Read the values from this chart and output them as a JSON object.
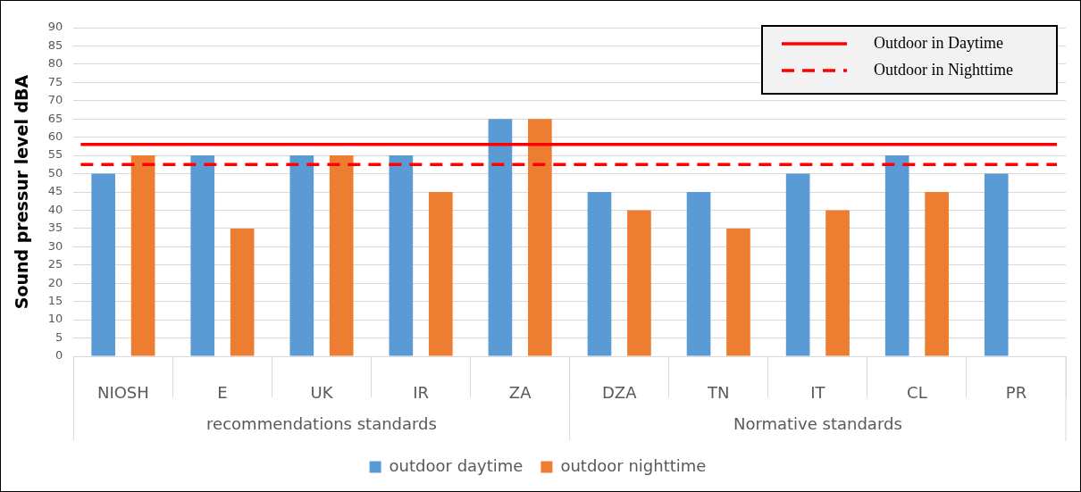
{
  "chart_data": {
    "type": "bar",
    "ylabel": "Sound pressur level dBA",
    "categories": [
      "NIOSH",
      "E",
      "UK",
      "IR",
      "ZA",
      "DZA",
      "TN",
      "IT",
      "CL",
      "PR"
    ],
    "series": [
      {
        "name": "outdoor daytime",
        "color": "#5b9bd5",
        "values": [
          50,
          55,
          55,
          55,
          65,
          45,
          45,
          50,
          55,
          50
        ]
      },
      {
        "name": "outdoor nighttime",
        "color": "#ed7d31",
        "values": [
          55,
          35,
          55,
          45,
          65,
          40,
          35,
          40,
          45,
          null
        ]
      }
    ],
    "ylim": [
      0,
      90
    ],
    "yticks": [
      0,
      5,
      10,
      15,
      20,
      25,
      30,
      35,
      40,
      45,
      50,
      55,
      60,
      65,
      70,
      75,
      80,
      85,
      90
    ],
    "ref_lines": [
      {
        "axis": "y",
        "value": 58,
        "label": "Outdoor in Daytime",
        "color": "#ff0000",
        "line_style": "solid"
      },
      {
        "axis": "y",
        "value": 52.5,
        "label": "Outdoor in Nighttime",
        "color": "#ff0000",
        "line_style": "dashed"
      }
    ],
    "annotations": [
      "recommendations standards",
      "Normative standards"
    ],
    "grid": "y",
    "legend": "bottom"
  }
}
